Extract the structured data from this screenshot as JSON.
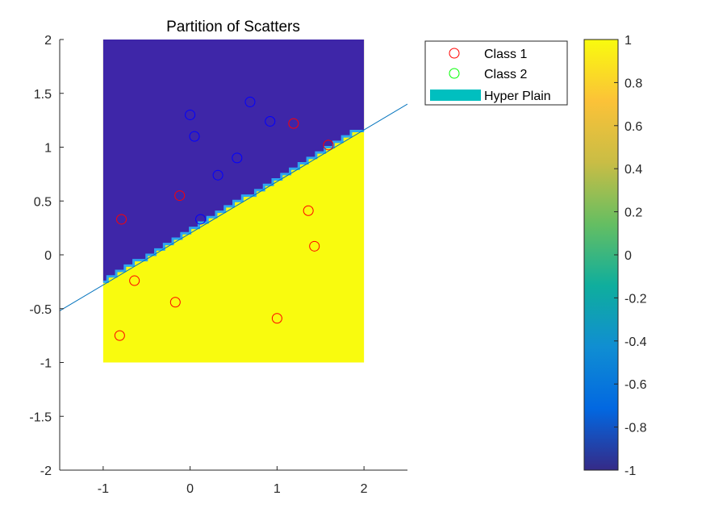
{
  "chart_data": {
    "type": "scatter",
    "title": "Partition of Scatters",
    "xlabel": "",
    "ylabel": "",
    "xlim": [
      -1.5,
      2.5
    ],
    "ylim": [
      -2,
      2
    ],
    "x_ticks": [
      -1,
      0,
      1,
      2
    ],
    "x_tick_labels": [
      "-1",
      "0",
      "1",
      "2"
    ],
    "y_ticks": [
      -2,
      -1.5,
      -1,
      -0.5,
      0,
      0.5,
      1,
      1.5,
      2
    ],
    "y_tick_labels": [
      "-2",
      "-1.5",
      "-1",
      "-0.5",
      "0",
      "0.5",
      "1",
      "1.5",
      "2"
    ],
    "grid": false,
    "region": {
      "x_range": [
        -1,
        2
      ],
      "y_range": [
        -1,
        2
      ],
      "above_value": -1,
      "below_value": 1,
      "above_color": "#3e26a8",
      "below_color": "#f9fb0e",
      "boundary_color": "#2ea6f0"
    },
    "boundary_line": {
      "slope": 0.48,
      "intercept": 0.2,
      "x_range": [
        -1.5,
        2.5
      ],
      "color": "#0072bd"
    },
    "series": [
      {
        "name": "Class 1",
        "color": "#ff0000",
        "marker": "circle-open",
        "points": [
          [
            -0.79,
            0.33
          ],
          [
            -0.64,
            -0.24
          ],
          [
            -0.81,
            -0.75
          ],
          [
            -0.17,
            -0.44
          ],
          [
            -0.12,
            0.55
          ],
          [
            1.0,
            -0.59
          ],
          [
            1.36,
            0.41
          ],
          [
            1.43,
            0.08
          ],
          [
            1.19,
            1.22
          ],
          [
            1.59,
            1.02
          ]
        ]
      },
      {
        "name": "Class 2",
        "color": "#00ff00",
        "marker": "circle-open",
        "points": [],
        "display_color": "#0000ff",
        "display_points": [
          [
            0.0,
            1.3
          ],
          [
            0.05,
            1.1
          ],
          [
            0.69,
            1.42
          ],
          [
            0.92,
            1.24
          ],
          [
            0.54,
            0.9
          ],
          [
            0.32,
            0.74
          ],
          [
            0.12,
            0.33
          ]
        ]
      }
    ],
    "legend": {
      "placement": "outside-top-right",
      "entries": [
        {
          "label": "Class 1",
          "color": "#ff0000",
          "kind": "circle"
        },
        {
          "label": "Class 2",
          "color": "#00ff00",
          "kind": "circle"
        },
        {
          "label": "Hyper Plain",
          "color": "#00bfbf",
          "kind": "patch"
        }
      ]
    },
    "colorbar": {
      "range": [
        -1,
        1
      ],
      "ticks": [
        -1,
        -0.8,
        -0.6,
        -0.4,
        -0.2,
        0,
        0.2,
        0.4,
        0.6,
        0.8,
        1
      ],
      "tick_labels": [
        "-1",
        "-0.8",
        "-0.6",
        "-0.4",
        "-0.2",
        "0",
        "0.2",
        "0.4",
        "0.6",
        "0.8",
        "1"
      ],
      "colormap": "parula",
      "stops": [
        "#352a87",
        "#0268e1",
        "#108ed2",
        "#0fae9d",
        "#65be62",
        "#c9bd45",
        "#fbc238",
        "#f9fb0e"
      ]
    }
  }
}
